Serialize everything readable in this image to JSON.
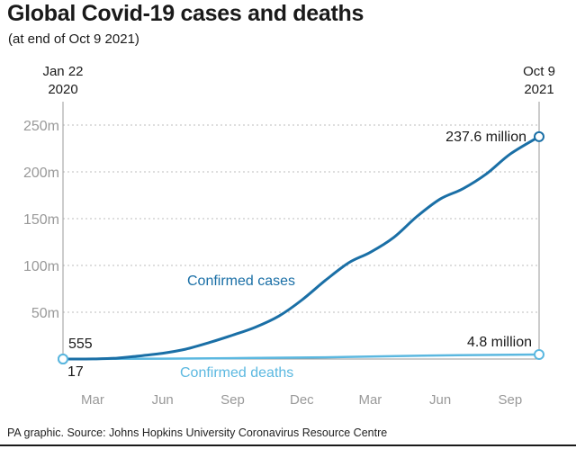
{
  "title": "Global Covid-19 cases and deaths",
  "subtitle": "(at end of Oct 9 2021)",
  "source": "PA graphic. Source: Johns Hopkins University Coronavirus Resource Centre",
  "chart_data": {
    "type": "line",
    "start_label": [
      "Jan 22",
      "2020"
    ],
    "end_label": [
      "Oct 9",
      "2021"
    ],
    "x_start": "2020-01-22",
    "x_end": "2021-10-09",
    "ylim": [
      0,
      250
    ],
    "y_ticks": [
      50,
      100,
      150,
      200,
      250
    ],
    "y_tick_labels": [
      "50m",
      "100m",
      "150m",
      "200m",
      "250m"
    ],
    "x_tick_dates": [
      "2020-03-01",
      "2020-06-01",
      "2020-09-01",
      "2020-12-01",
      "2021-03-01",
      "2021-06-01",
      "2021-09-01"
    ],
    "x_tick_labels": [
      "Mar",
      "Jun",
      "Sep",
      "Dec",
      "Mar",
      "Jun",
      "Sep"
    ],
    "grid": true,
    "series": [
      {
        "name": "Confirmed cases",
        "color": "#1a6fa6",
        "x": [
          "2020-01-22",
          "2020-03-01",
          "2020-04-01",
          "2020-05-01",
          "2020-06-01",
          "2020-07-01",
          "2020-08-01",
          "2020-09-01",
          "2020-10-01",
          "2020-11-01",
          "2020-12-01",
          "2021-01-01",
          "2021-02-01",
          "2021-03-01",
          "2021-04-01",
          "2021-05-01",
          "2021-06-01",
          "2021-07-01",
          "2021-08-01",
          "2021-09-01",
          "2021-10-09"
        ],
        "values": [
          0.000555,
          0.1,
          0.9,
          3.3,
          6.2,
          10.5,
          17.5,
          25.5,
          34,
          46,
          63,
          84,
          103,
          114,
          130,
          152,
          171,
          182,
          198,
          219,
          237.6
        ],
        "start_annotation": "555",
        "end_annotation": "237.6 million"
      },
      {
        "name": "Confirmed deaths",
        "color": "#5bb8e0",
        "x": [
          "2020-01-22",
          "2020-06-01",
          "2021-01-01",
          "2021-06-01",
          "2021-10-09"
        ],
        "values": [
          1.7e-05,
          0.4,
          1.8,
          3.8,
          4.8
        ],
        "start_annotation": "17",
        "end_annotation": "4.8 million"
      }
    ]
  }
}
